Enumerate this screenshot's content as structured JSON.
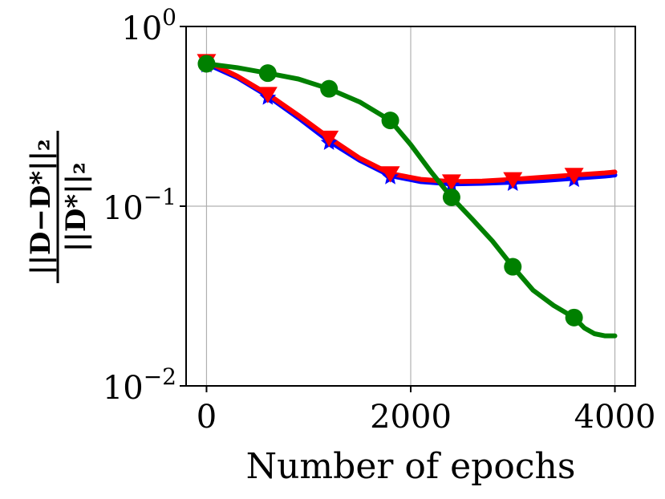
{
  "chart_data": {
    "type": "line",
    "title": "",
    "xlabel": "Number of epochs",
    "ylabel_numerator": "||D−D*||₂",
    "ylabel_denominator": "||D*||₂",
    "xlim": [
      -200,
      4200
    ],
    "ylim": [
      0.01,
      1
    ],
    "yscale": "log",
    "grid": true,
    "x_ticks": [
      {
        "value": 0,
        "label": "0"
      },
      {
        "value": 2000,
        "label": "2000"
      },
      {
        "value": 4000,
        "label": "4000"
      }
    ],
    "y_ticks": [
      {
        "value": 1,
        "base": "10",
        "exp": "0"
      },
      {
        "value": 0.1,
        "base": "10",
        "exp": "−1"
      },
      {
        "value": 0.01,
        "base": "10",
        "exp": "−2"
      }
    ],
    "series": [
      {
        "color": "#0000ff",
        "marker": "star",
        "x": [
          0,
          600,
          1200,
          1800,
          2400,
          3000,
          3600
        ],
        "y": [
          0.62,
          0.41,
          0.23,
          0.148,
          0.133,
          0.136,
          0.143
        ],
        "curve_x": [
          0,
          300,
          600,
          900,
          1200,
          1500,
          1800,
          2100,
          2400,
          2700,
          3000,
          3300,
          3600,
          3900,
          4000
        ],
        "curve_y": [
          0.62,
          0.52,
          0.41,
          0.31,
          0.23,
          0.18,
          0.148,
          0.137,
          0.133,
          0.134,
          0.136,
          0.139,
          0.143,
          0.147,
          0.149
        ]
      },
      {
        "color": "#ff0000",
        "marker": "triangle-down",
        "x": [
          0,
          600,
          1200,
          1800,
          2400,
          3000,
          3600
        ],
        "y": [
          0.64,
          0.42,
          0.24,
          0.152,
          0.137,
          0.141,
          0.149
        ],
        "curve_x": [
          0,
          300,
          600,
          900,
          1200,
          1500,
          1800,
          2100,
          2400,
          2700,
          3000,
          3300,
          3600,
          3900,
          4000
        ],
        "curve_y": [
          0.64,
          0.53,
          0.42,
          0.32,
          0.24,
          0.185,
          0.152,
          0.141,
          0.137,
          0.138,
          0.141,
          0.145,
          0.149,
          0.153,
          0.155
        ]
      },
      {
        "color": "#008000",
        "marker": "circle",
        "x": [
          0,
          600,
          1200,
          1800,
          2400,
          3000,
          3600
        ],
        "y": [
          0.62,
          0.55,
          0.45,
          0.3,
          0.112,
          0.046,
          0.024
        ],
        "curve_x": [
          0,
          300,
          600,
          900,
          1200,
          1500,
          1800,
          2000,
          2200,
          2400,
          2600,
          2800,
          3000,
          3200,
          3400,
          3600,
          3700,
          3800,
          3900,
          4000
        ],
        "curve_y": [
          0.62,
          0.59,
          0.55,
          0.51,
          0.45,
          0.38,
          0.3,
          0.22,
          0.155,
          0.112,
          0.085,
          0.064,
          0.046,
          0.034,
          0.028,
          0.024,
          0.021,
          0.0195,
          0.019,
          0.019
        ]
      }
    ]
  }
}
